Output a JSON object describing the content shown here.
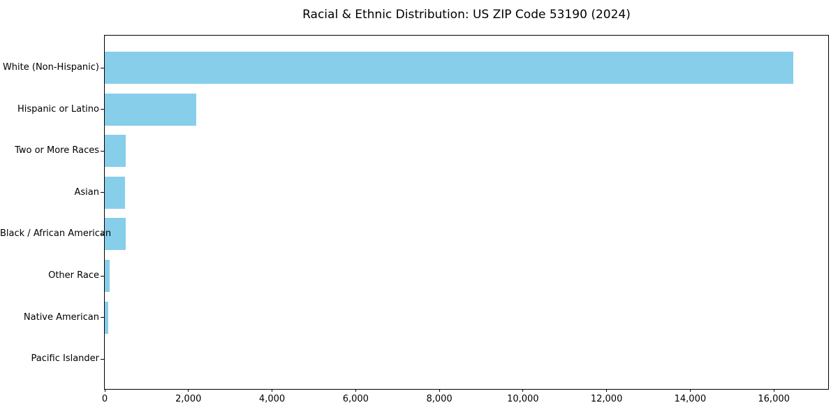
{
  "chart_data": {
    "type": "bar",
    "orientation": "horizontal",
    "title": "Racial & Ethnic Distribution: US ZIP Code 53190 (2024)",
    "categories": [
      "White (Non-Hispanic)",
      "Hispanic or Latino",
      "Two or More Races",
      "Asian",
      "Black / African American",
      "Other Race",
      "Native American",
      "Pacific Islander"
    ],
    "values": [
      16470,
      2180,
      500,
      480,
      500,
      120,
      90,
      0
    ],
    "xlabel": "",
    "ylabel": "",
    "xlim": [
      0,
      17300
    ],
    "xticks": {
      "values": [
        0,
        2000,
        4000,
        6000,
        8000,
        10000,
        12000,
        14000,
        16000
      ],
      "labels": [
        "0",
        "2,000",
        "4,000",
        "6,000",
        "8,000",
        "10,000",
        "12,000",
        "14,000",
        "16,000"
      ]
    },
    "bar_color": "#87CEEB",
    "background": "#FFFFFF",
    "axis_color": "#000000",
    "grid": false,
    "legend": "none"
  }
}
